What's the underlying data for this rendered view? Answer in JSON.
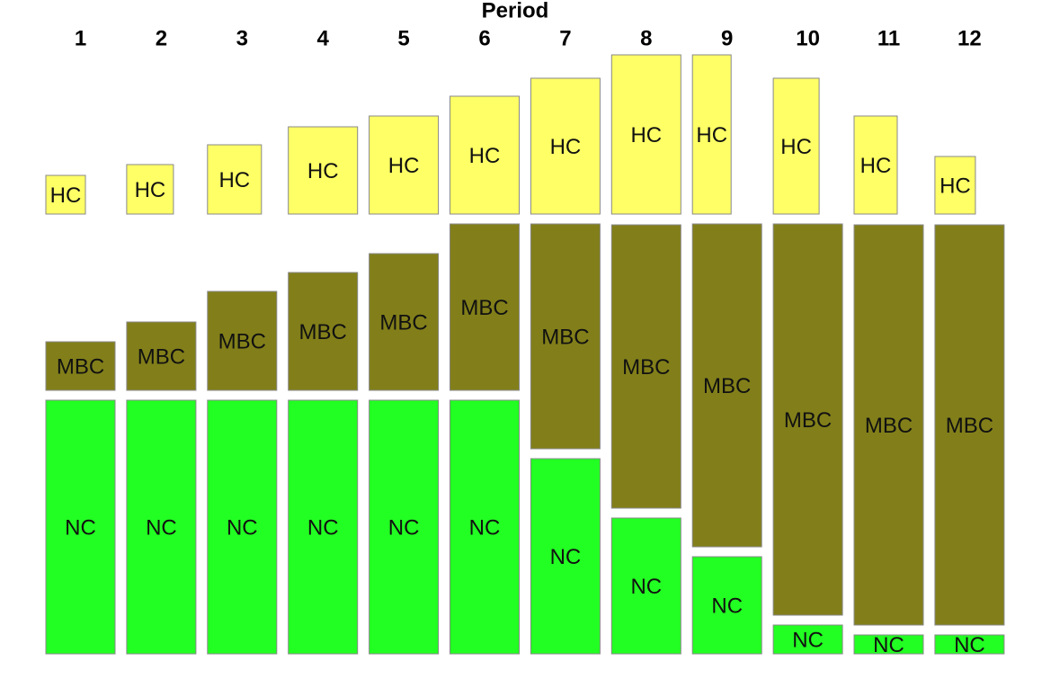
{
  "chart_data": {
    "type": "mosaic",
    "title": "Period",
    "categories": [
      "1",
      "2",
      "3",
      "4",
      "5",
      "6",
      "7",
      "8",
      "9",
      "10",
      "11",
      "12"
    ],
    "series": [
      {
        "name": "NC",
        "color": "#22ff22",
        "values": [
          282,
          282,
          282,
          282,
          282,
          282,
          217,
          151,
          108,
          32,
          21,
          21
        ]
      },
      {
        "name": "MBC",
        "color": "#827f1a",
        "values": [
          54,
          76,
          110,
          131,
          152,
          185,
          250,
          315,
          359,
          435,
          445,
          445
        ]
      },
      {
        "name": "HC",
        "color": "#ffff66",
        "values": [
          43,
          55,
          77,
          97,
          109,
          131,
          151,
          177,
          177,
          151,
          109,
          64
        ],
        "widths": [
          44,
          52,
          60,
          77,
          77,
          77,
          77,
          77,
          43,
          51,
          48,
          45
        ]
      }
    ]
  }
}
